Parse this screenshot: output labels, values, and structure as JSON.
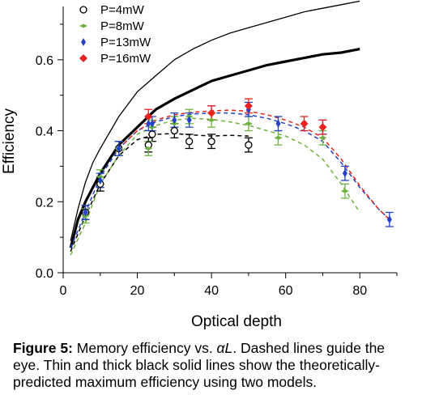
{
  "chart_data": {
    "type": "scatter",
    "title": "",
    "xlabel": "Optical depth",
    "ylabel": "Efficiency",
    "xlim": [
      0,
      90
    ],
    "ylim": [
      0,
      0.75
    ],
    "xticks": [
      0,
      20,
      40,
      60,
      80
    ],
    "yticks": [
      0.0,
      0.2,
      0.4,
      0.6
    ],
    "xtick_labels": [
      "0",
      "20",
      "40",
      "60",
      "80"
    ],
    "ytick_labels": [
      "0.0",
      "0.2",
      "0.4",
      "0.6"
    ],
    "grid": false,
    "legend_position": "top-left",
    "series": [
      {
        "name": "P=4mW",
        "marker": "open-circle",
        "color": "#000000",
        "points": [
          {
            "x": 6,
            "y": 0.17,
            "err": 0.02
          },
          {
            "x": 10,
            "y": 0.25,
            "err": 0.02
          },
          {
            "x": 15,
            "y": 0.35,
            "err": 0.02
          },
          {
            "x": 23,
            "y": 0.36,
            "err": 0.02
          },
          {
            "x": 24,
            "y": 0.39,
            "err": 0.02
          },
          {
            "x": 30,
            "y": 0.4,
            "err": 0.02
          },
          {
            "x": 34,
            "y": 0.37,
            "err": 0.02
          },
          {
            "x": 40,
            "y": 0.37,
            "err": 0.02
          },
          {
            "x": 50,
            "y": 0.36,
            "err": 0.02
          }
        ],
        "trend": [
          [
            2,
            0.06
          ],
          [
            6,
            0.16
          ],
          [
            10,
            0.25
          ],
          [
            15,
            0.33
          ],
          [
            20,
            0.375
          ],
          [
            25,
            0.39
          ],
          [
            30,
            0.392
          ],
          [
            35,
            0.388
          ],
          [
            40,
            0.385
          ],
          [
            45,
            0.387
          ],
          [
            50,
            0.385
          ]
        ]
      },
      {
        "name": "P=8mW",
        "marker": "green-diamond",
        "color": "#6db33f",
        "points": [
          {
            "x": 6,
            "y": 0.16,
            "err": 0.02
          },
          {
            "x": 10,
            "y": 0.27,
            "err": 0.02
          },
          {
            "x": 15,
            "y": 0.35,
            "err": 0.02
          },
          {
            "x": 23,
            "y": 0.35,
            "err": 0.02
          },
          {
            "x": 24,
            "y": 0.41,
            "err": 0.02
          },
          {
            "x": 30,
            "y": 0.42,
            "err": 0.02
          },
          {
            "x": 34,
            "y": 0.44,
            "err": 0.02
          },
          {
            "x": 40,
            "y": 0.43,
            "err": 0.02
          },
          {
            "x": 50,
            "y": 0.42,
            "err": 0.02
          },
          {
            "x": 58,
            "y": 0.38,
            "err": 0.02
          },
          {
            "x": 70,
            "y": 0.38,
            "err": 0.02
          },
          {
            "x": 76,
            "y": 0.23,
            "err": 0.02
          }
        ],
        "trend": [
          [
            2,
            0.05
          ],
          [
            6,
            0.14
          ],
          [
            10,
            0.25
          ],
          [
            15,
            0.33
          ],
          [
            20,
            0.39
          ],
          [
            25,
            0.415
          ],
          [
            30,
            0.43
          ],
          [
            35,
            0.435
          ],
          [
            40,
            0.432
          ],
          [
            45,
            0.425
          ],
          [
            50,
            0.415
          ],
          [
            55,
            0.4
          ],
          [
            60,
            0.385
          ],
          [
            65,
            0.36
          ],
          [
            70,
            0.32
          ],
          [
            75,
            0.25
          ],
          [
            80,
            0.17
          ]
        ]
      },
      {
        "name": "P=13mW",
        "marker": "blue-diamond",
        "color": "#2342c6",
        "points": [
          {
            "x": 6,
            "y": 0.17,
            "err": 0.02
          },
          {
            "x": 10,
            "y": 0.26,
            "err": 0.02
          },
          {
            "x": 15,
            "y": 0.35,
            "err": 0.02
          },
          {
            "x": 23,
            "y": 0.42,
            "err": 0.02
          },
          {
            "x": 24,
            "y": 0.42,
            "err": 0.02
          },
          {
            "x": 30,
            "y": 0.43,
            "err": 0.02
          },
          {
            "x": 34,
            "y": 0.43,
            "err": 0.02
          },
          {
            "x": 40,
            "y": 0.45,
            "err": 0.02
          },
          {
            "x": 50,
            "y": 0.46,
            "err": 0.02
          },
          {
            "x": 58,
            "y": 0.42,
            "err": 0.02
          },
          {
            "x": 70,
            "y": 0.41,
            "err": 0.02
          },
          {
            "x": 76,
            "y": 0.28,
            "err": 0.02
          },
          {
            "x": 88,
            "y": 0.15,
            "err": 0.02
          }
        ],
        "trend": [
          [
            2,
            0.07
          ],
          [
            6,
            0.17
          ],
          [
            10,
            0.27
          ],
          [
            15,
            0.35
          ],
          [
            20,
            0.4
          ],
          [
            25,
            0.425
          ],
          [
            30,
            0.44
          ],
          [
            35,
            0.447
          ],
          [
            40,
            0.45
          ],
          [
            45,
            0.45
          ],
          [
            50,
            0.445
          ],
          [
            55,
            0.435
          ],
          [
            60,
            0.42
          ],
          [
            65,
            0.4
          ],
          [
            70,
            0.37
          ],
          [
            75,
            0.31
          ],
          [
            80,
            0.24
          ],
          [
            85,
            0.18
          ],
          [
            88,
            0.15
          ]
        ]
      },
      {
        "name": "P=16mW",
        "marker": "red-diamond",
        "color": "#e8231f",
        "points": [
          {
            "x": 23,
            "y": 0.44,
            "err": 0.02
          },
          {
            "x": 40,
            "y": 0.45,
            "err": 0.02
          },
          {
            "x": 50,
            "y": 0.47,
            "err": 0.02
          },
          {
            "x": 65,
            "y": 0.42,
            "err": 0.02
          },
          {
            "x": 70,
            "y": 0.41,
            "err": 0.02
          }
        ],
        "trend": [
          [
            15,
            0.35
          ],
          [
            20,
            0.4
          ],
          [
            25,
            0.43
          ],
          [
            30,
            0.445
          ],
          [
            35,
            0.452
          ],
          [
            40,
            0.456
          ],
          [
            45,
            0.458
          ],
          [
            50,
            0.455
          ],
          [
            55,
            0.445
          ],
          [
            60,
            0.43
          ],
          [
            65,
            0.41
          ],
          [
            70,
            0.38
          ],
          [
            75,
            0.32
          ],
          [
            80,
            0.245
          ],
          [
            85,
            0.18
          ],
          [
            88,
            0.15
          ]
        ]
      }
    ],
    "model_curves": [
      {
        "style": "thin-solid",
        "color": "#000000",
        "points": [
          [
            2,
            0.09
          ],
          [
            4,
            0.18
          ],
          [
            6,
            0.255
          ],
          [
            8,
            0.31
          ],
          [
            10,
            0.35
          ],
          [
            15,
            0.44
          ],
          [
            20,
            0.51
          ],
          [
            25,
            0.555
          ],
          [
            30,
            0.6
          ],
          [
            35,
            0.63
          ],
          [
            40,
            0.655
          ],
          [
            45,
            0.675
          ],
          [
            50,
            0.69
          ],
          [
            55,
            0.705
          ],
          [
            60,
            0.72
          ],
          [
            65,
            0.735
          ],
          [
            70,
            0.745
          ],
          [
            75,
            0.755
          ],
          [
            80,
            0.765
          ]
        ]
      },
      {
        "style": "thick-solid",
        "color": "#000000",
        "points": [
          [
            2,
            0.07
          ],
          [
            4,
            0.15
          ],
          [
            6,
            0.2
          ],
          [
            8,
            0.24
          ],
          [
            10,
            0.28
          ],
          [
            15,
            0.36
          ],
          [
            20,
            0.41
          ],
          [
            25,
            0.46
          ],
          [
            30,
            0.49
          ],
          [
            35,
            0.515
          ],
          [
            40,
            0.54
          ],
          [
            45,
            0.555
          ],
          [
            50,
            0.57
          ],
          [
            55,
            0.585
          ],
          [
            60,
            0.595
          ],
          [
            65,
            0.605
          ],
          [
            70,
            0.615
          ],
          [
            75,
            0.62
          ],
          [
            80,
            0.63
          ]
        ]
      }
    ]
  },
  "caption": {
    "label": "Figure 5:",
    "text_before": " Memory efficiency vs. ",
    "symbol": "αL",
    "text_after": ". Dashed lines guide the eye. Thin and thick black solid lines show the theoretically-predicted maximum efficiency using two models."
  }
}
